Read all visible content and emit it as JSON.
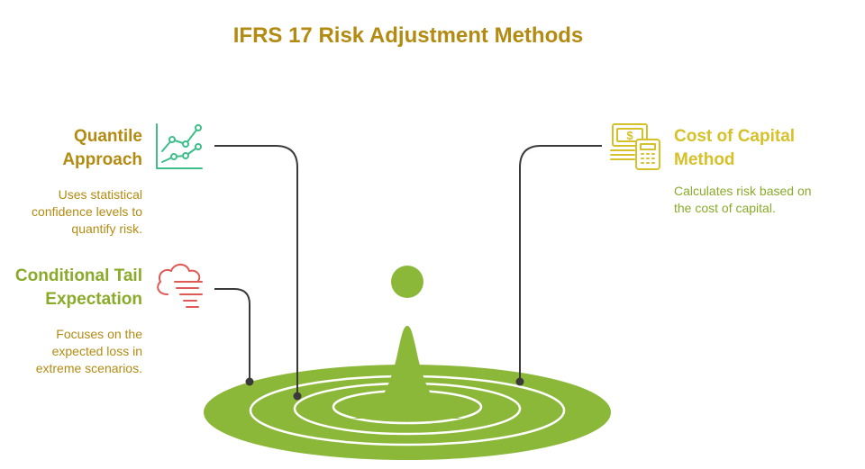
{
  "title": "IFRS 17 Risk Adjustment Methods",
  "colors": {
    "title": "#b38b12",
    "quantile": "#b38b12",
    "tail": "#8aaa2a",
    "capital": "#d6c12a",
    "quantile_icon": "#3dbf8a",
    "tail_icon": "#e05a55",
    "capital_icon": "#d6c12a",
    "base": "#8cb83a",
    "connector": "#3a3a3a"
  },
  "items": {
    "quantile": {
      "title_line1": "Quantile",
      "title_line2": "Approach",
      "desc_line1": "Uses statistical",
      "desc_line2": "confidence levels to",
      "desc_line3": "quantify risk.",
      "icon": "line-chart-icon"
    },
    "tail": {
      "title_line1": "Conditional Tail",
      "title_line2": "Expectation",
      "desc_line1": "Focuses on the",
      "desc_line2": "expected loss in",
      "desc_line3": "extreme scenarios.",
      "icon": "storm-cloud-icon"
    },
    "capital": {
      "title_line1": "Cost of Capital",
      "title_line2": "Method",
      "desc_line1": "Calculates risk based on",
      "desc_line2": "the cost of capital.",
      "icon": "money-calculator-icon"
    }
  }
}
